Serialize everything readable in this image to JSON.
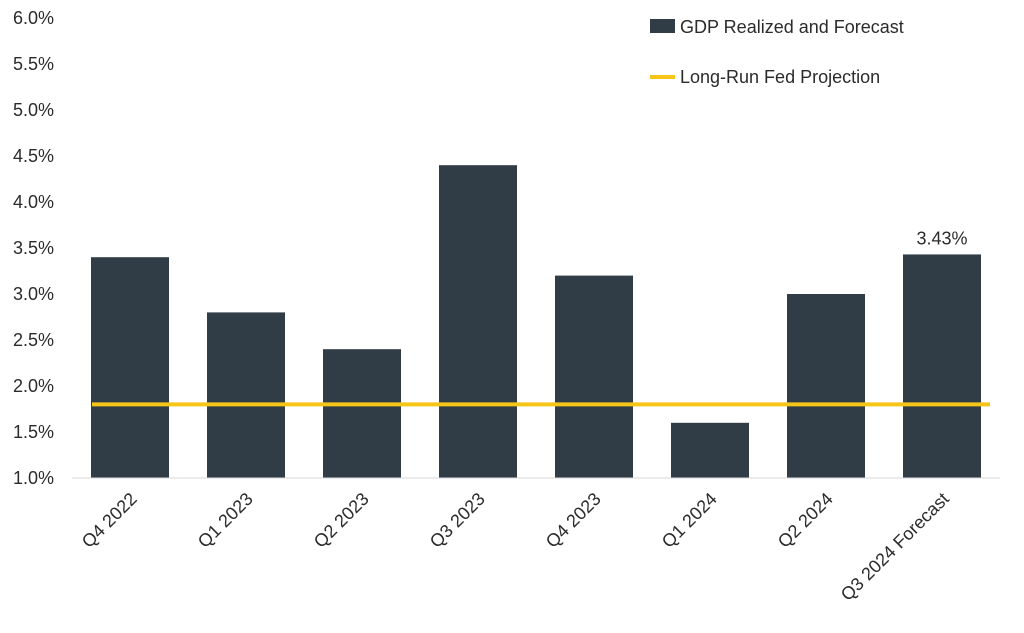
{
  "chart_data": {
    "type": "bar",
    "categories": [
      "Q4 2022",
      "Q1 2023",
      "Q2 2023",
      "Q3 2023",
      "Q4 2023",
      "Q1 2024",
      "Q2 2024",
      "Q3 2024 Forecast"
    ],
    "series": [
      {
        "name": "GDP Realized and Forecast",
        "type": "bar",
        "values": [
          3.4,
          2.8,
          2.4,
          4.4,
          3.2,
          1.6,
          3.0,
          3.43
        ],
        "color": "#303c46"
      },
      {
        "name": "Long-Run Fed Projection",
        "type": "line",
        "values": [
          1.8,
          1.8,
          1.8,
          1.8,
          1.8,
          1.8,
          1.8,
          1.8
        ],
        "color": "#f5c518"
      }
    ],
    "y_ticks": [
      "1.0%",
      "1.5%",
      "2.0%",
      "2.5%",
      "3.0%",
      "3.5%",
      "4.0%",
      "4.5%",
      "5.0%",
      "5.5%",
      "6.0%"
    ],
    "ylim": [
      1.0,
      6.0
    ],
    "data_labels": [
      {
        "index": 7,
        "text": "3.43%"
      }
    ],
    "legend_position": "top-right",
    "grid": false
  }
}
